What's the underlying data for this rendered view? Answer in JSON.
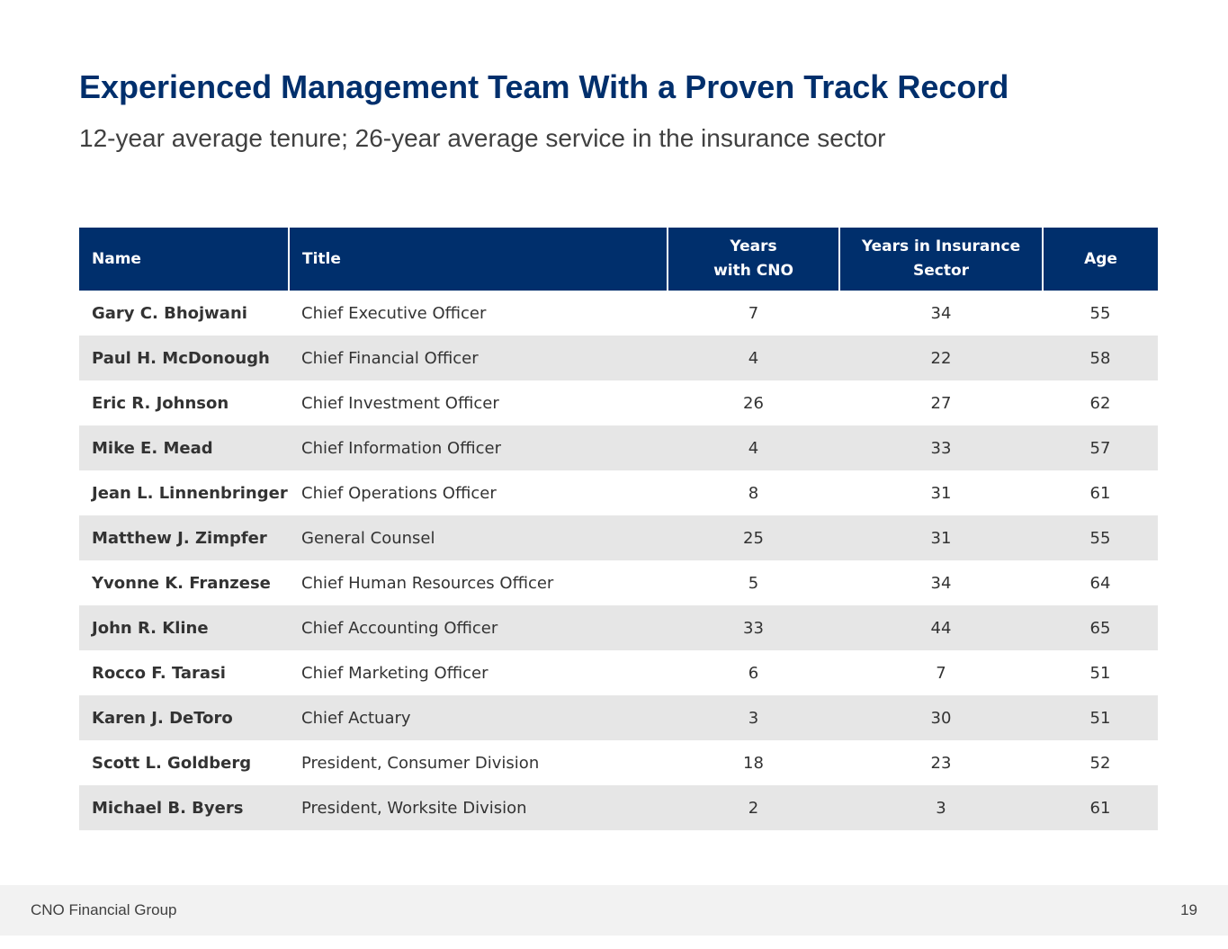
{
  "slide": {
    "title": "Experienced Management Team With a Proven Track Record",
    "subtitle": "12-year average tenure; 26-year average service in the insurance sector"
  },
  "table": {
    "headers": {
      "name": "Name",
      "title": "Title",
      "years_cno_line1": "Years",
      "years_cno_line2": "with CNO",
      "years_ins_line1": "Years in Insurance",
      "years_ins_line2": "Sector",
      "age": "Age"
    },
    "rows": [
      {
        "name": "Gary C. Bhojwani",
        "title": "Chief Executive Officer",
        "years_cno": "7",
        "years_ins": "34",
        "age": "55"
      },
      {
        "name": "Paul H. McDonough",
        "title": "Chief Financial Officer",
        "years_cno": "4",
        "years_ins": "22",
        "age": "58"
      },
      {
        "name": "Eric R. Johnson",
        "title": "Chief Investment Officer",
        "years_cno": "26",
        "years_ins": "27",
        "age": "62"
      },
      {
        "name": "Mike E. Mead",
        "title": "Chief Information Officer",
        "years_cno": "4",
        "years_ins": "33",
        "age": "57"
      },
      {
        "name": "Jean L.  Linnenbringer",
        "title": "Chief Operations Officer",
        "years_cno": "8",
        "years_ins": "31",
        "age": "61"
      },
      {
        "name": "Matthew J. Zimpfer",
        "title": "General Counsel",
        "years_cno": "25",
        "years_ins": "31",
        "age": "55"
      },
      {
        "name": "Yvonne K. Franzese",
        "title": "Chief Human Resources Officer",
        "years_cno": "5",
        "years_ins": "34",
        "age": "64"
      },
      {
        "name": "John R. Kline",
        "title": "Chief Accounting Officer",
        "years_cno": "33",
        "years_ins": "44",
        "age": "65"
      },
      {
        "name": "Rocco F. Tarasi",
        "title": "Chief Marketing Officer",
        "years_cno": "6",
        "years_ins": "7",
        "age": "51"
      },
      {
        "name": "Karen J. DeToro",
        "title": "Chief Actuary",
        "years_cno": "3",
        "years_ins": "30",
        "age": "51"
      },
      {
        "name": "Scott L. Goldberg",
        "title": "President, Consumer Division",
        "years_cno": "18",
        "years_ins": "23",
        "age": "52"
      },
      {
        "name": "Michael B. Byers",
        "title": "President, Worksite Division",
        "years_cno": "2",
        "years_ins": "3",
        "age": "61"
      }
    ]
  },
  "footer": {
    "company": "CNO Financial Group",
    "page_number": "19"
  },
  "colors": {
    "brand_navy": "#002f6c",
    "row_alt": "#e6e6e6",
    "footer_bg": "#f2f2f2"
  }
}
